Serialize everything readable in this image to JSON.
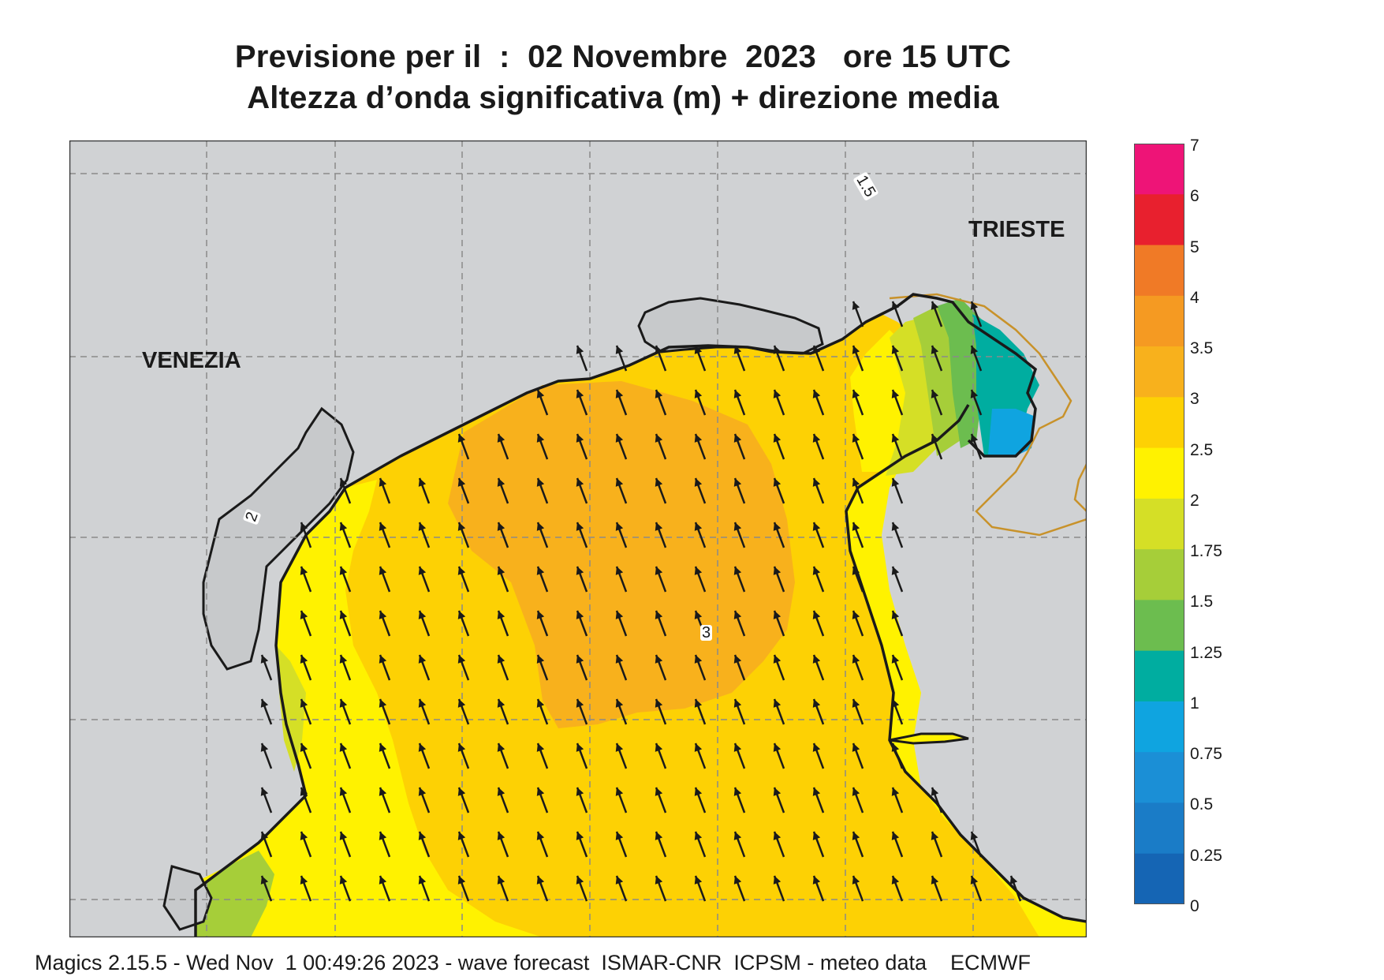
{
  "title": {
    "line1": "Previsione per il  :  02 Novembre  2023   ore 15 UTC",
    "line2": "Altezza d’onda significativa (m) + direzione media"
  },
  "map": {
    "cities": [
      "VENEZIA",
      "TRIESTE"
    ],
    "contour_labels": [
      "2",
      "3",
      "1.5"
    ],
    "colors": {
      "land": "#d0d2d4",
      "grid": "#8a8a8a",
      "border": "#c8922a",
      "coast": "#1a1a1a",
      "arrow": "#1a1a1a"
    },
    "mean_direction": "north-northwest"
  },
  "legend": {
    "ticks": [
      "7",
      "6",
      "5",
      "4",
      "3.5",
      "3",
      "2.5",
      "2",
      "1.75",
      "1.5",
      "1.25",
      "1",
      "0.75",
      "0.5",
      "0.25",
      "0"
    ],
    "bands": [
      {
        "range": "6-7",
        "color": "#ee1477"
      },
      {
        "range": "5-6",
        "color": "#e8202e"
      },
      {
        "range": "4-5",
        "color": "#f07a26"
      },
      {
        "range": "3.5-4",
        "color": "#f59a22"
      },
      {
        "range": "3-3.5",
        "color": "#f8b11c"
      },
      {
        "range": "2.5-3",
        "color": "#fdd104"
      },
      {
        "range": "2-2.5",
        "color": "#fff200"
      },
      {
        "range": "1.75-2",
        "color": "#d5df26"
      },
      {
        "range": "1.5-1.75",
        "color": "#a6ce39"
      },
      {
        "range": "1.25-1.5",
        "color": "#6cbd4f"
      },
      {
        "range": "1-1.25",
        "color": "#00ada0"
      },
      {
        "range": "0.75-1",
        "color": "#0fa4e0"
      },
      {
        "range": "0.5-0.75",
        "color": "#1b8fd6"
      },
      {
        "range": "0.25-0.5",
        "color": "#1a7cc7"
      },
      {
        "range": "0-0.25",
        "color": "#1565b4"
      }
    ]
  },
  "footer": "Magics 2.15.5 - Wed Nov  1 00:49:26 2023 - wave forecast  ISMAR-CNR  ICPSM - meteo data    ECMWF"
}
